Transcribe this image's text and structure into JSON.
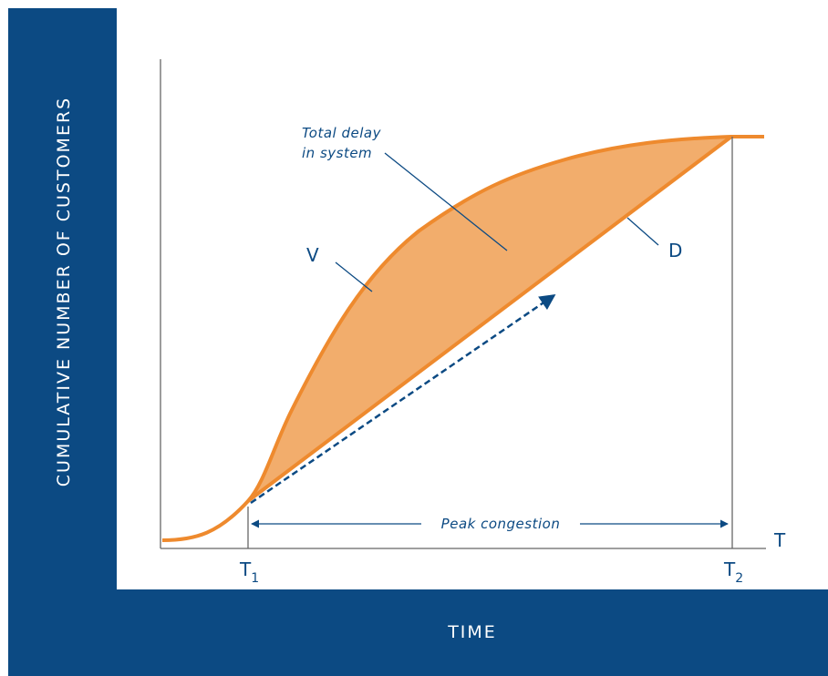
{
  "colors": {
    "frame": "#0c4a83",
    "curve": "#ee8a2e",
    "fill": "#f2ad6c",
    "ink": "#0c4a83",
    "axis": "#666666"
  },
  "axes": {
    "x_label": "TIME",
    "y_label": "CUMULATIVE NUMBER OF CUSTOMERS",
    "x_end_label": "T"
  },
  "curves": {
    "arrivals_label": "V",
    "departures_label": "D"
  },
  "markers": {
    "t1": {
      "main": "T",
      "sub": "1"
    },
    "t2": {
      "main": "T",
      "sub": "2"
    }
  },
  "annotations": {
    "delay_line1": "Total delay",
    "delay_line2": "in system",
    "peak": "Peak congestion"
  }
}
